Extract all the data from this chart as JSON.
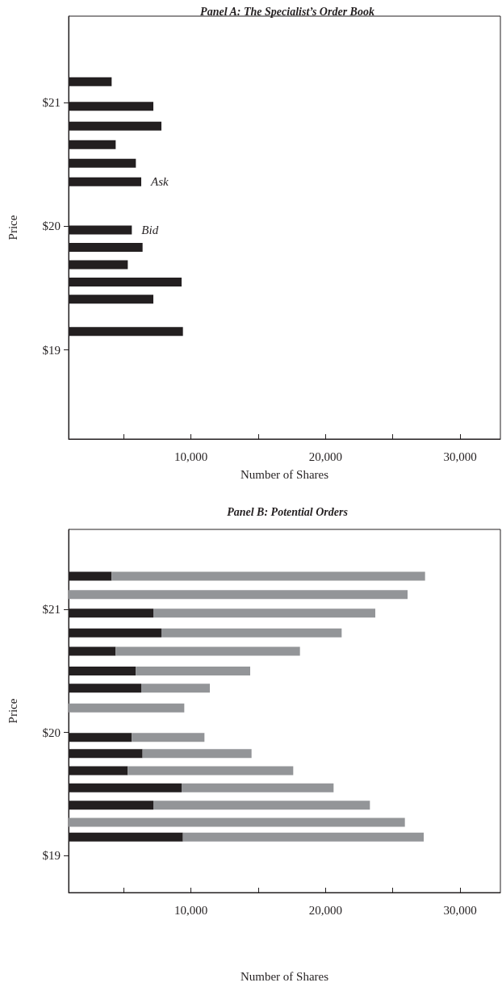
{
  "chart_data": [
    {
      "type": "bar",
      "orientation": "horizontal",
      "title": "Panel A: The Specialist’s Order Book",
      "xlabel": "Number of Shares",
      "ylabel": "Price",
      "x": [
        21.17,
        20.97,
        20.81,
        20.66,
        20.51,
        20.36,
        19.97,
        19.83,
        19.69,
        19.55,
        19.41,
        19.15
      ],
      "values": [
        4100,
        7200,
        7800,
        4400,
        5900,
        6300,
        5600,
        6400,
        5300,
        9300,
        7200,
        9400
      ],
      "color": "#231f20",
      "xlim": [
        900,
        33000
      ],
      "xticks": [
        {
          "value": 5000,
          "label": null
        },
        {
          "value": 10000,
          "label": "10,000"
        },
        {
          "value": 15000,
          "label": null
        },
        {
          "value": 20000,
          "label": "20,000"
        },
        {
          "value": 25000,
          "label": null
        },
        {
          "value": 30000,
          "label": "30,000"
        }
      ],
      "ylim": [
        18.28,
        21.7
      ],
      "yticks": [
        {
          "value": 19,
          "label": "$19"
        },
        {
          "value": 20,
          "label": "$20"
        },
        {
          "value": 21,
          "label": "$21"
        }
      ],
      "annotations": [
        {
          "text": "Ask",
          "x": 6300,
          "y": 20.36
        },
        {
          "text": "Bid",
          "x": 5600,
          "y": 19.97
        }
      ],
      "grid": false
    },
    {
      "type": "bar",
      "orientation": "horizontal",
      "stacked": true,
      "title": "Panel B: Potential Orders",
      "xlabel": "Number of Shares",
      "ylabel": "Price",
      "x": [
        21.27,
        21.12,
        20.97,
        20.81,
        20.66,
        20.5,
        20.36,
        20.2,
        19.96,
        19.83,
        19.69,
        19.55,
        19.41,
        19.27,
        19.15
      ],
      "series": [
        {
          "color": "#231f20",
          "values": [
            4100,
            null,
            7200,
            7800,
            4400,
            5900,
            6300,
            null,
            5600,
            6400,
            5300,
            9300,
            7200,
            null,
            9400
          ]
        },
        {
          "color": "#939598",
          "values": [
            23300,
            26100,
            16500,
            13400,
            13700,
            8500,
            5100,
            9500,
            5400,
            8100,
            12300,
            11300,
            16100,
            25900,
            17900
          ]
        }
      ],
      "xlim": [
        900,
        33000
      ],
      "xticks": [
        {
          "value": 5000,
          "label": null
        },
        {
          "value": 10000,
          "label": "10,000"
        },
        {
          "value": 15000,
          "label": null
        },
        {
          "value": 20000,
          "label": "20,000"
        },
        {
          "value": 25000,
          "label": null
        },
        {
          "value": 30000,
          "label": "30,000"
        }
      ],
      "ylim": [
        18.7,
        21.65
      ],
      "yticks": [
        {
          "value": 19,
          "label": "$19"
        },
        {
          "value": 20,
          "label": "$20"
        },
        {
          "value": 21,
          "label": "$21"
        }
      ],
      "grid": false
    }
  ]
}
